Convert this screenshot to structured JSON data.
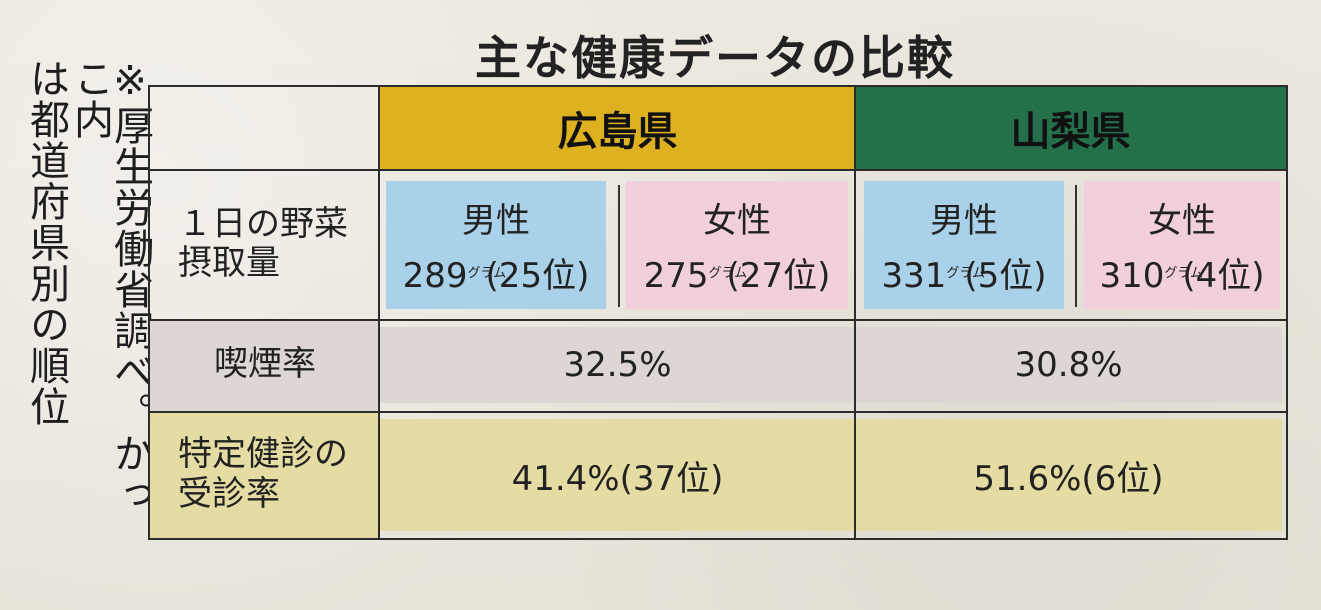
{
  "title": "主な健康データの比較",
  "note": {
    "col1": "※厚生労働省調べ。かっこ内",
    "col2": "は都道府県別の順位"
  },
  "prefectures": {
    "hiroshima": "広島県",
    "yamanashi": "山梨県"
  },
  "rows": {
    "vegetable": {
      "label_line1": "１日の野菜",
      "label_line2": "摂取量"
    },
    "smoking": {
      "label": "喫煙率"
    },
    "checkup": {
      "label_line1": "特定健診の",
      "label_line2": "受診率"
    }
  },
  "unit_gram": "グラム",
  "vegetable_values": {
    "hiroshima": {
      "male_label": "男性",
      "male_value": "289",
      "male_rank": "(25位)",
      "female_label": "女性",
      "female_value": "275",
      "female_rank": "(27位)"
    },
    "yamanashi": {
      "male_label": "男性",
      "male_value": "331",
      "male_rank": "(5位)",
      "female_label": "女性",
      "female_value": "310",
      "female_rank": "(4位)"
    }
  },
  "smoking_values": {
    "hiroshima": "32.5%",
    "yamanashi": "30.8%"
  },
  "checkup_values": {
    "hiroshima": "41.4%(37位)",
    "yamanashi": "51.6%(6位)"
  },
  "colors": {
    "hiroshima_header": "#deb120",
    "yamanashi_header": "#23704a",
    "male_box": "#a9d2ea",
    "female_box": "#f2cfdc",
    "smoking_band": "#ddd6d3",
    "checkup_band": "#e4dca2"
  }
}
